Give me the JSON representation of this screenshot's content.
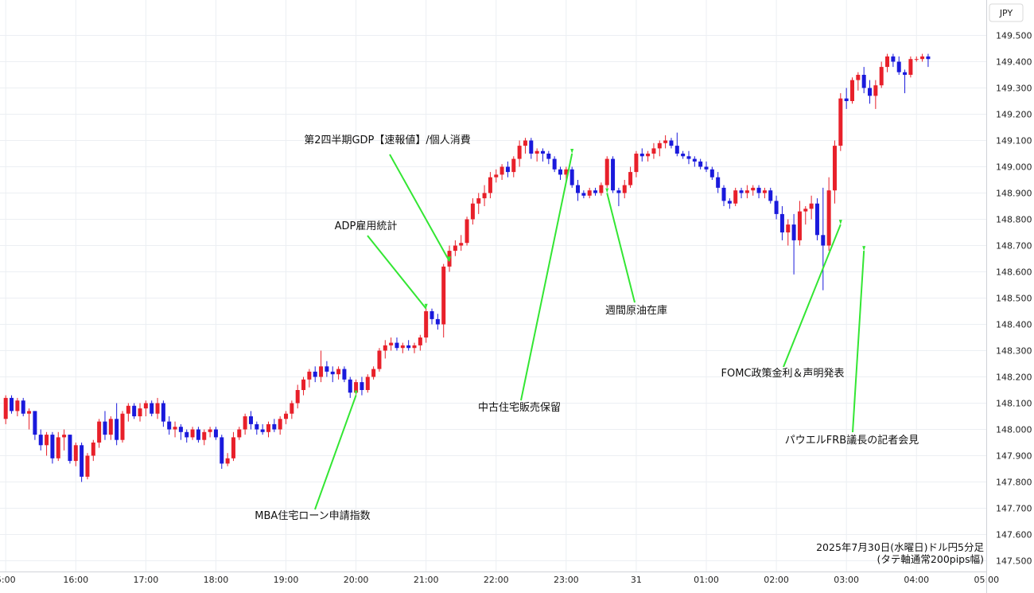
{
  "chart_data": {
    "type": "candlestick",
    "currency_label": "JPY",
    "caption_line1": "2025年7月30日(水曜日)ドル円5分足",
    "caption_line2": "(タテ軸通常200pips幅)",
    "ylim": [
      147.46,
      149.56
    ],
    "y_ticks": [
      "149.500",
      "149.400",
      "149.300",
      "149.200",
      "149.100",
      "149.000",
      "148.900",
      "148.800",
      "148.700",
      "148.600",
      "148.500",
      "148.400",
      "148.300",
      "148.200",
      "148.100",
      "148.000",
      "147.900",
      "147.800",
      "147.700",
      "147.600",
      "147.500"
    ],
    "x_ticks": [
      {
        "label": "5:00",
        "bar": 0
      },
      {
        "label": "16:00",
        "bar": 12
      },
      {
        "label": "17:00",
        "bar": 24
      },
      {
        "label": "18:00",
        "bar": 36
      },
      {
        "label": "19:00",
        "bar": 48
      },
      {
        "label": "20:00",
        "bar": 60
      },
      {
        "label": "21:00",
        "bar": 72
      },
      {
        "label": "22:00",
        "bar": 84
      },
      {
        "label": "23:00",
        "bar": 96
      },
      {
        "label": "31",
        "bar": 108
      },
      {
        "label": "01:00",
        "bar": 120
      },
      {
        "label": "02:00",
        "bar": 132
      },
      {
        "label": "03:00",
        "bar": 144
      },
      {
        "label": "04:00",
        "bar": 156
      },
      {
        "label": "05:00",
        "bar": 168
      }
    ],
    "up_color": "#e8202a",
    "down_color": "#1a1adc",
    "annotation_color": "#33e633",
    "candles": [
      [
        148.04,
        148.13,
        148.02,
        148.12
      ],
      [
        148.12,
        148.13,
        148.06,
        148.07
      ],
      [
        148.07,
        148.12,
        148.05,
        148.11
      ],
      [
        148.11,
        148.12,
        148.05,
        148.06
      ],
      [
        148.06,
        148.08,
        148.0,
        148.07
      ],
      [
        148.07,
        148.07,
        147.96,
        147.98
      ],
      [
        147.98,
        148.0,
        147.92,
        147.94
      ],
      [
        147.94,
        147.99,
        147.9,
        147.98
      ],
      [
        147.98,
        147.99,
        147.87,
        147.89
      ],
      [
        147.89,
        147.99,
        147.88,
        147.97
      ],
      [
        147.97,
        148.0,
        147.92,
        147.98
      ],
      [
        147.98,
        147.98,
        147.87,
        147.88
      ],
      [
        147.88,
        147.95,
        147.86,
        147.94
      ],
      [
        147.94,
        147.95,
        147.8,
        147.82
      ],
      [
        147.82,
        147.91,
        147.81,
        147.9
      ],
      [
        147.9,
        147.96,
        147.88,
        147.95
      ],
      [
        147.95,
        148.04,
        147.93,
        148.03
      ],
      [
        148.03,
        148.07,
        147.96,
        147.98
      ],
      [
        147.98,
        148.05,
        147.96,
        148.04
      ],
      [
        148.04,
        148.1,
        147.94,
        147.96
      ],
      [
        147.96,
        148.07,
        147.95,
        148.06
      ],
      [
        148.06,
        148.1,
        148.03,
        148.09
      ],
      [
        148.09,
        148.1,
        148.04,
        148.05
      ],
      [
        148.05,
        148.1,
        148.03,
        148.08
      ],
      [
        148.08,
        148.11,
        148.05,
        148.1
      ],
      [
        148.1,
        148.11,
        148.05,
        148.06
      ],
      [
        148.06,
        148.12,
        148.04,
        148.1
      ],
      [
        148.1,
        148.11,
        148.01,
        148.03
      ],
      [
        148.03,
        148.05,
        147.98,
        148.0
      ],
      [
        148.0,
        148.03,
        147.97,
        148.01
      ],
      [
        148.01,
        148.02,
        147.96,
        147.99
      ],
      [
        147.99,
        148.0,
        147.95,
        147.97
      ],
      [
        147.97,
        148.01,
        147.96,
        148.0
      ],
      [
        148.0,
        148.01,
        147.95,
        147.96
      ],
      [
        147.96,
        148.0,
        147.94,
        147.99
      ],
      [
        147.99,
        148.01,
        147.97,
        148.0
      ],
      [
        148.0,
        148.01,
        147.96,
        147.97
      ],
      [
        147.97,
        147.98,
        147.85,
        147.87
      ],
      [
        147.87,
        147.91,
        147.86,
        147.89
      ],
      [
        147.89,
        147.99,
        147.88,
        147.97
      ],
      [
        147.97,
        148.01,
        147.96,
        148.0
      ],
      [
        148.0,
        148.06,
        147.98,
        148.05
      ],
      [
        148.05,
        148.07,
        148.0,
        148.02
      ],
      [
        148.02,
        148.03,
        147.98,
        148.0
      ],
      [
        148.0,
        148.02,
        147.98,
        147.99
      ],
      [
        147.99,
        148.03,
        147.97,
        148.02
      ],
      [
        148.02,
        148.04,
        147.99,
        148.0
      ],
      [
        148.0,
        148.05,
        147.98,
        148.04
      ],
      [
        148.04,
        148.07,
        148.02,
        148.06
      ],
      [
        148.06,
        148.11,
        148.04,
        148.1
      ],
      [
        148.1,
        148.17,
        148.08,
        148.15
      ],
      [
        148.15,
        148.2,
        148.13,
        148.19
      ],
      [
        148.19,
        148.23,
        148.16,
        148.22
      ],
      [
        148.22,
        148.24,
        148.18,
        148.2
      ],
      [
        148.2,
        148.3,
        148.18,
        148.24
      ],
      [
        148.24,
        148.26,
        148.2,
        148.22
      ],
      [
        148.22,
        148.24,
        148.18,
        148.21
      ],
      [
        148.21,
        148.24,
        148.19,
        148.23
      ],
      [
        148.23,
        148.24,
        148.18,
        148.19
      ],
      [
        148.19,
        148.2,
        148.12,
        148.14
      ],
      [
        148.14,
        148.19,
        148.13,
        148.18
      ],
      [
        148.18,
        148.2,
        148.13,
        148.15
      ],
      [
        148.15,
        148.21,
        148.14,
        148.2
      ],
      [
        148.2,
        148.24,
        148.19,
        148.23
      ],
      [
        148.23,
        148.31,
        148.22,
        148.3
      ],
      [
        148.3,
        148.34,
        148.27,
        148.32
      ],
      [
        148.32,
        148.35,
        148.3,
        148.33
      ],
      [
        148.33,
        148.35,
        148.3,
        148.31
      ],
      [
        148.31,
        148.33,
        148.29,
        148.32
      ],
      [
        148.32,
        148.34,
        148.3,
        148.31
      ],
      [
        148.31,
        148.33,
        148.29,
        148.32
      ],
      [
        148.32,
        148.36,
        148.3,
        148.35
      ],
      [
        148.35,
        148.46,
        148.33,
        148.45
      ],
      [
        148.45,
        148.46,
        148.4,
        148.42
      ],
      [
        148.42,
        148.44,
        148.38,
        148.4
      ],
      [
        148.4,
        148.63,
        148.35,
        148.62
      ],
      [
        148.62,
        148.7,
        148.6,
        148.68
      ],
      [
        148.68,
        148.72,
        148.66,
        148.7
      ],
      [
        148.7,
        148.74,
        148.68,
        148.71
      ],
      [
        148.71,
        148.81,
        148.7,
        148.8
      ],
      [
        148.8,
        148.88,
        148.78,
        148.86
      ],
      [
        148.86,
        148.9,
        148.82,
        148.88
      ],
      [
        148.88,
        148.93,
        148.85,
        148.9
      ],
      [
        148.9,
        148.98,
        148.88,
        148.96
      ],
      [
        148.96,
        148.99,
        148.94,
        148.97
      ],
      [
        148.97,
        149.01,
        148.95,
        149.0
      ],
      [
        149.0,
        149.02,
        148.96,
        148.98
      ],
      [
        148.98,
        149.04,
        148.96,
        149.03
      ],
      [
        149.03,
        149.1,
        149.0,
        149.08
      ],
      [
        149.08,
        149.11,
        149.05,
        149.1
      ],
      [
        149.1,
        149.11,
        149.03,
        149.05
      ],
      [
        149.05,
        149.07,
        149.02,
        149.06
      ],
      [
        149.06,
        149.07,
        149.02,
        149.05
      ],
      [
        149.05,
        149.06,
        149.01,
        149.03
      ],
      [
        149.03,
        149.04,
        148.98,
        148.99
      ],
      [
        148.99,
        149.0,
        148.95,
        148.97
      ],
      [
        148.97,
        149.0,
        148.94,
        148.99
      ],
      [
        148.99,
        149.0,
        148.92,
        148.93
      ],
      [
        148.93,
        148.95,
        148.87,
        148.9
      ],
      [
        148.9,
        148.91,
        148.88,
        148.89
      ],
      [
        148.89,
        148.92,
        148.88,
        148.91
      ],
      [
        148.91,
        148.92,
        148.89,
        148.9
      ],
      [
        148.9,
        148.94,
        148.89,
        148.93
      ],
      [
        148.93,
        149.04,
        148.92,
        149.03
      ],
      [
        149.03,
        149.04,
        148.9,
        148.91
      ],
      [
        148.91,
        148.92,
        148.85,
        148.9
      ],
      [
        148.9,
        148.95,
        148.88,
        148.93
      ],
      [
        148.93,
        149.0,
        148.92,
        148.98
      ],
      [
        148.98,
        149.06,
        148.96,
        149.05
      ],
      [
        149.05,
        149.07,
        149.02,
        149.04
      ],
      [
        149.04,
        149.06,
        149.02,
        149.05
      ],
      [
        149.05,
        149.09,
        149.03,
        149.07
      ],
      [
        149.07,
        149.1,
        149.04,
        149.09
      ],
      [
        149.09,
        149.12,
        149.07,
        149.1
      ],
      [
        149.1,
        149.11,
        149.07,
        149.08
      ],
      [
        149.08,
        149.13,
        149.04,
        149.05
      ],
      [
        149.05,
        149.06,
        149.03,
        149.04
      ],
      [
        149.04,
        149.06,
        149.01,
        149.03
      ],
      [
        149.03,
        149.04,
        149.0,
        149.02
      ],
      [
        149.02,
        149.03,
        148.99,
        149.0
      ],
      [
        149.0,
        149.02,
        148.98,
        148.99
      ],
      [
        148.99,
        149.0,
        148.95,
        148.96
      ],
      [
        148.96,
        148.98,
        148.9,
        148.92
      ],
      [
        148.92,
        148.93,
        148.85,
        148.87
      ],
      [
        148.87,
        148.88,
        148.84,
        148.86
      ],
      [
        148.86,
        148.92,
        148.85,
        148.91
      ],
      [
        148.91,
        148.92,
        148.88,
        148.9
      ],
      [
        148.9,
        148.93,
        148.88,
        148.91
      ],
      [
        148.91,
        148.93,
        148.89,
        148.92
      ],
      [
        148.92,
        148.93,
        148.88,
        148.9
      ],
      [
        148.9,
        148.92,
        148.88,
        148.91
      ],
      [
        148.91,
        148.92,
        148.86,
        148.87
      ],
      [
        148.87,
        148.89,
        148.8,
        148.82
      ],
      [
        148.82,
        148.85,
        148.72,
        148.75
      ],
      [
        148.75,
        148.8,
        148.7,
        148.78
      ],
      [
        148.78,
        148.82,
        148.59,
        148.72
      ],
      [
        148.72,
        148.87,
        148.7,
        148.83
      ],
      [
        148.83,
        148.85,
        148.78,
        148.84
      ],
      [
        148.84,
        148.89,
        148.8,
        148.86
      ],
      [
        148.86,
        148.88,
        148.72,
        148.74
      ],
      [
        148.74,
        148.92,
        148.53,
        148.7
      ],
      [
        148.7,
        148.96,
        148.68,
        148.91
      ],
      [
        148.91,
        149.1,
        148.86,
        149.08
      ],
      [
        149.08,
        149.28,
        149.06,
        149.26
      ],
      [
        149.26,
        149.3,
        149.22,
        149.25
      ],
      [
        149.25,
        149.34,
        149.24,
        149.33
      ],
      [
        149.33,
        149.36,
        149.29,
        149.35
      ],
      [
        149.35,
        149.38,
        149.28,
        149.3
      ],
      [
        149.3,
        149.33,
        149.24,
        149.27
      ],
      [
        149.27,
        149.33,
        149.22,
        149.31
      ],
      [
        149.31,
        149.4,
        149.3,
        149.38
      ],
      [
        149.38,
        149.43,
        149.36,
        149.42
      ],
      [
        149.42,
        149.43,
        149.38,
        149.4
      ],
      [
        149.4,
        149.42,
        149.35,
        149.36
      ],
      [
        149.36,
        149.37,
        149.28,
        149.35
      ],
      [
        149.35,
        149.42,
        149.34,
        149.41
      ],
      [
        149.41,
        149.42,
        149.4,
        149.41
      ],
      [
        149.41,
        149.43,
        149.4,
        149.42
      ],
      [
        149.42,
        149.43,
        149.38,
        149.41
      ]
    ],
    "annotations": [
      {
        "text": "第2四半期GDP【速報値】/個人消費",
        "bar": 76,
        "price": 148.64
      },
      {
        "text": "ADP雇用統計",
        "bar": 72,
        "price": 148.46
      },
      {
        "text": "MBA住宅ローン申請指数",
        "bar": 60,
        "price": 148.13
      },
      {
        "text": "中古住宅販売保留",
        "bar": 97,
        "price": 149.05
      },
      {
        "text": "週間原油在庫",
        "bar": 103,
        "price": 148.9
      },
      {
        "text": "FOMC政策金利＆声明発表",
        "bar": 143,
        "price": 148.78
      },
      {
        "text": "パウエルFRB議長の記者会見",
        "bar": 147,
        "price": 148.68
      }
    ]
  }
}
